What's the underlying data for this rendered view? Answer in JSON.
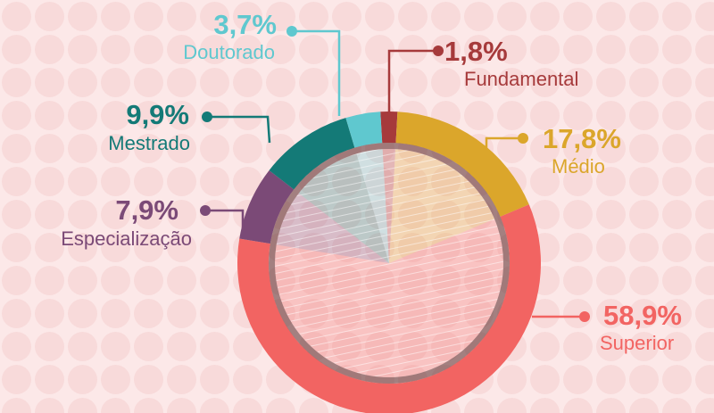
{
  "chart_data": {
    "type": "pie",
    "categories": [
      "Fundamental",
      "Médio",
      "Superior",
      "Especialização",
      "Mestrado",
      "Doutorado"
    ],
    "values": [
      1.8,
      17.8,
      58.9,
      7.9,
      9.9,
      3.7
    ],
    "value_labels": [
      "1,8%",
      "17,8%",
      "58,9%",
      "7,9%",
      "9,9%",
      "3,7%"
    ],
    "colors": [
      "#a63a3b",
      "#dba62b",
      "#f26462",
      "#7b4a77",
      "#147a77",
      "#5fc8cf"
    ]
  }
}
